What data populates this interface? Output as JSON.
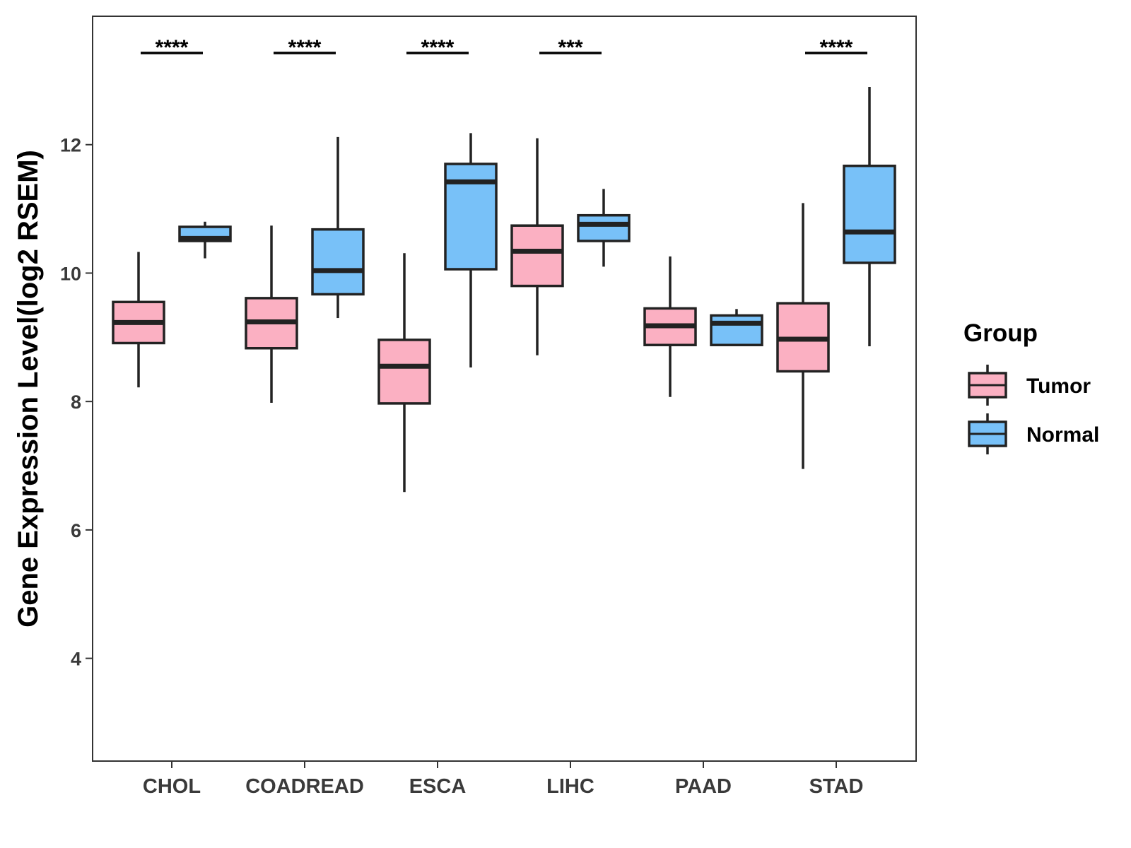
{
  "chart_data": {
    "type": "boxplot",
    "title": "",
    "xlabel": "",
    "ylabel": "Gene Expression Level(log2 RSEM)",
    "ylim": [
      2.4,
      14.0
    ],
    "yticks": [
      4,
      6,
      8,
      10,
      12
    ],
    "grid": false,
    "categories": [
      "CHOL",
      "COADREAD",
      "ESCA",
      "LIHC",
      "PAAD",
      "STAD"
    ],
    "series": [
      {
        "name": "Tumor",
        "color": "#FBB0C2",
        "boxes": [
          {
            "min": 8.22,
            "q1": 8.91,
            "median": 9.23,
            "q3": 9.55,
            "max": 10.33
          },
          {
            "min": 7.98,
            "q1": 8.83,
            "median": 9.24,
            "q3": 9.61,
            "max": 10.74
          },
          {
            "min": 6.59,
            "q1": 7.97,
            "median": 8.55,
            "q3": 8.96,
            "max": 10.31
          },
          {
            "min": 8.72,
            "q1": 9.8,
            "median": 10.34,
            "q3": 10.74,
            "max": 12.1
          },
          {
            "min": 8.07,
            "q1": 8.88,
            "median": 9.18,
            "q3": 9.45,
            "max": 10.26
          },
          {
            "min": 6.95,
            "q1": 8.47,
            "median": 8.97,
            "q3": 9.53,
            "max": 11.09
          }
        ]
      },
      {
        "name": "Normal",
        "color": "#78C1F8",
        "boxes": [
          {
            "min": 10.23,
            "q1": 10.5,
            "median": 10.54,
            "q3": 10.72,
            "max": 10.8
          },
          {
            "min": 9.3,
            "q1": 9.67,
            "median": 10.04,
            "q3": 10.68,
            "max": 12.12
          },
          {
            "min": 8.53,
            "q1": 10.06,
            "median": 11.42,
            "q3": 11.7,
            "max": 12.18
          },
          {
            "min": 10.1,
            "q1": 10.5,
            "median": 10.76,
            "q3": 10.9,
            "max": 11.31
          },
          {
            "min": 8.88,
            "q1": 8.88,
            "median": 9.22,
            "q3": 9.34,
            "max": 9.44
          },
          {
            "min": 8.86,
            "q1": 10.16,
            "median": 10.64,
            "q3": 11.67,
            "max": 12.9
          }
        ]
      }
    ],
    "significance": [
      "****",
      "****",
      "****",
      "***",
      "",
      "****"
    ],
    "legend": {
      "title": "Group",
      "position": "right",
      "items": [
        "Tumor",
        "Normal"
      ]
    }
  }
}
